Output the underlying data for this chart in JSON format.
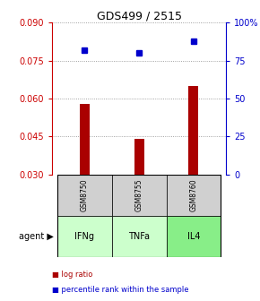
{
  "title": "GDS499 / 2515",
  "samples": [
    "GSM8750",
    "GSM8755",
    "GSM8760"
  ],
  "agents": [
    "IFNg",
    "TNFa",
    "IL4"
  ],
  "log_ratio_values": [
    0.058,
    0.044,
    0.065
  ],
  "log_ratio_baseline": 0.03,
  "percentile_values": [
    82,
    80,
    88
  ],
  "ylim_left": [
    0.03,
    0.09
  ],
  "ylim_right": [
    0,
    100
  ],
  "yticks_left": [
    0.03,
    0.045,
    0.06,
    0.075,
    0.09
  ],
  "yticks_right": [
    0,
    25,
    50,
    75,
    100
  ],
  "bar_color": "#aa0000",
  "dot_color": "#0000cc",
  "sample_bg": "#d0d0d0",
  "agent_bg_light": "#ccffcc",
  "agent_bg_dark": "#88ee88",
  "grid_color": "#888888",
  "legend_bar_label": "log ratio",
  "legend_dot_label": "percentile rank within the sample",
  "agent_label": "agent",
  "right_axis_color": "#0000cc",
  "left_axis_color": "#cc0000",
  "bar_width": 0.18
}
